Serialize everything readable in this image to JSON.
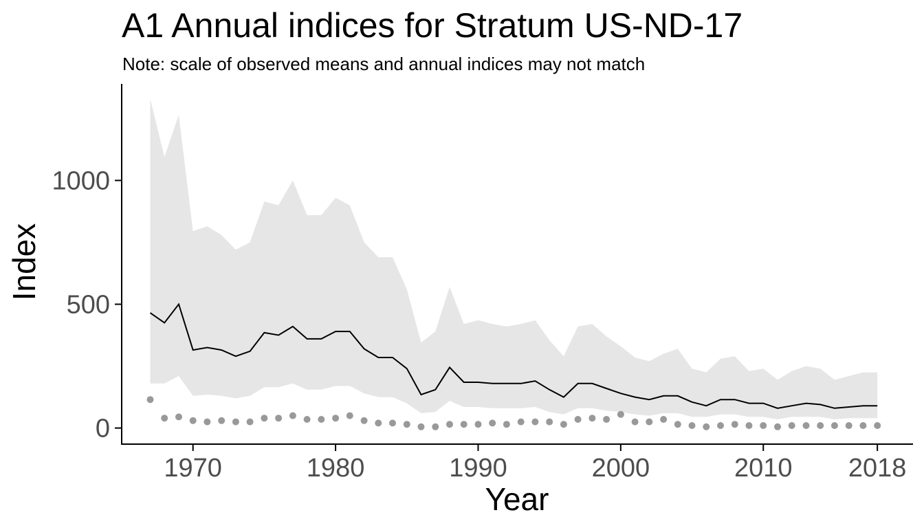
{
  "title": "A1 Annual indices for Stratum US-ND-17",
  "subtitle": "Note: scale of observed means and annual indices may not match",
  "chart_data": {
    "type": "line",
    "title": "A1 Annual indices for Stratum US-ND-17",
    "subtitle": "Note: scale of observed means and annual indices may not match",
    "xlabel": "Year",
    "ylabel": "Index",
    "xlim": [
      1965,
      2020.5
    ],
    "ylim": [
      -65,
      1390
    ],
    "x_ticks": [
      1970,
      1980,
      1990,
      2000,
      2010,
      2018
    ],
    "y_ticks": [
      0,
      500,
      1000
    ],
    "grid": false,
    "legend": "none",
    "colors": {
      "band": "#e6e6e6",
      "line": "#000000",
      "points": "#999999",
      "axis": "#000000",
      "tick_text": "#4d4d4d"
    },
    "x": [
      1967,
      1968,
      1969,
      1970,
      1971,
      1972,
      1973,
      1974,
      1975,
      1976,
      1977,
      1978,
      1979,
      1980,
      1981,
      1982,
      1983,
      1984,
      1985,
      1986,
      1987,
      1988,
      1989,
      1990,
      1991,
      1992,
      1993,
      1994,
      1995,
      1996,
      1997,
      1998,
      1999,
      2000,
      2001,
      2002,
      2003,
      2004,
      2005,
      2006,
      2007,
      2008,
      2009,
      2010,
      2011,
      2012,
      2013,
      2014,
      2015,
      2016,
      2017,
      2018
    ],
    "series": [
      {
        "kind": "band",
        "upper": [
          1330,
          1095,
          1265,
          795,
          815,
          780,
          720,
          750,
          915,
          900,
          1000,
          860,
          860,
          930,
          900,
          750,
          690,
          690,
          560,
          345,
          390,
          570,
          420,
          435,
          420,
          410,
          420,
          435,
          355,
          290,
          410,
          420,
          370,
          330,
          285,
          270,
          300,
          320,
          240,
          225,
          280,
          290,
          230,
          240,
          195,
          230,
          250,
          240,
          195,
          210,
          225,
          225
        ],
        "lower": [
          180,
          180,
          210,
          130,
          135,
          130,
          120,
          130,
          165,
          165,
          180,
          155,
          155,
          170,
          170,
          140,
          125,
          125,
          100,
          60,
          65,
          110,
          85,
          85,
          80,
          80,
          80,
          85,
          65,
          55,
          80,
          80,
          70,
          65,
          55,
          50,
          60,
          60,
          45,
          45,
          55,
          55,
          45,
          45,
          35,
          45,
          45,
          45,
          35,
          40,
          40,
          40
        ]
      },
      {
        "kind": "line",
        "values": [
          465,
          425,
          500,
          315,
          325,
          315,
          290,
          310,
          385,
          375,
          410,
          360,
          360,
          390,
          390,
          320,
          285,
          285,
          240,
          135,
          155,
          245,
          185,
          185,
          180,
          180,
          180,
          190,
          155,
          125,
          180,
          180,
          160,
          140,
          125,
          115,
          130,
          130,
          105,
          90,
          115,
          115,
          100,
          100,
          80,
          90,
          100,
          95,
          80,
          85,
          90,
          90
        ]
      },
      {
        "kind": "points",
        "values": [
          115,
          40,
          45,
          30,
          25,
          30,
          25,
          25,
          40,
          40,
          50,
          35,
          35,
          40,
          50,
          30,
          20,
          20,
          15,
          5,
          5,
          15,
          15,
          15,
          20,
          15,
          25,
          25,
          25,
          15,
          35,
          40,
          35,
          55,
          25,
          25,
          35,
          15,
          10,
          5,
          10,
          15,
          10,
          10,
          5,
          10,
          10,
          10,
          10,
          10,
          10,
          10
        ]
      }
    ]
  }
}
